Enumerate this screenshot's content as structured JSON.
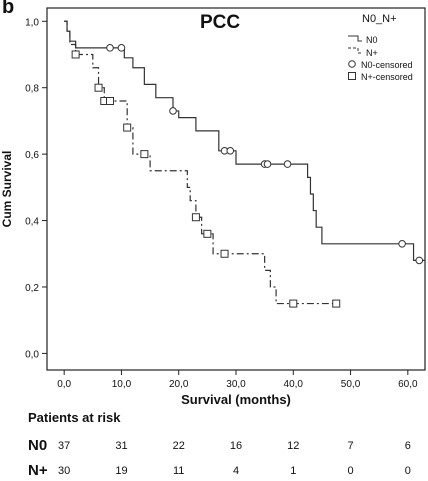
{
  "panel_label": "b",
  "chart_data": {
    "type": "line",
    "title": "PCC",
    "xlabel": "Survival (months)",
    "ylabel": "Cum Survival",
    "xlim": [
      -3,
      63
    ],
    "ylim": [
      -0.05,
      1.04
    ],
    "x_ticks": [
      0,
      10,
      20,
      30,
      40,
      50,
      60
    ],
    "x_tick_labels": [
      "0,0",
      "10,0",
      "20,0",
      "30,0",
      "40,0",
      "50,0",
      "60,0"
    ],
    "y_ticks": [
      0.0,
      0.2,
      0.4,
      0.6,
      0.8,
      1.0
    ],
    "y_tick_labels": [
      "0,0",
      "0,2",
      "0,4",
      "0,6",
      "0,8",
      "1,0"
    ],
    "legend_title": "N0_N+",
    "legend_position": "top-right",
    "grid": false,
    "series": [
      {
        "name": "N0",
        "line_style": "solid",
        "censor_marker": "circle",
        "censored_label": "N0-censored",
        "steps": [
          [
            0,
            1.0
          ],
          [
            0.5,
            0.97
          ],
          [
            1.0,
            0.94
          ],
          [
            2.0,
            0.92
          ],
          [
            10.5,
            0.89
          ],
          [
            12.0,
            0.86
          ],
          [
            14.0,
            0.81
          ],
          [
            16.0,
            0.77
          ],
          [
            19.0,
            0.73
          ],
          [
            20.0,
            0.71
          ],
          [
            23.0,
            0.67
          ],
          [
            27.0,
            0.61
          ],
          [
            30.0,
            0.57
          ],
          [
            42.5,
            0.53
          ],
          [
            43.0,
            0.48
          ],
          [
            43.5,
            0.43
          ],
          [
            44.0,
            0.38
          ],
          [
            45.0,
            0.33
          ],
          [
            61.0,
            0.28
          ]
        ],
        "end_x": 63,
        "censored": [
          [
            8.0,
            0.92
          ],
          [
            10.0,
            0.92
          ],
          [
            19.0,
            0.73
          ],
          [
            28.0,
            0.61
          ],
          [
            29.0,
            0.61
          ],
          [
            35.0,
            0.57
          ],
          [
            35.5,
            0.57
          ],
          [
            39.0,
            0.57
          ],
          [
            59.0,
            0.33
          ],
          [
            62.0,
            0.28
          ]
        ]
      },
      {
        "name": "N+",
        "line_style": "dashdot",
        "censor_marker": "square",
        "censored_label": "N+-censored",
        "steps": [
          [
            0,
            1.0
          ],
          [
            0.5,
            0.97
          ],
          [
            1.0,
            0.93
          ],
          [
            2.0,
            0.9
          ],
          [
            5.0,
            0.86
          ],
          [
            6.0,
            0.8
          ],
          [
            7.0,
            0.76
          ],
          [
            11.0,
            0.68
          ],
          [
            12.0,
            0.6
          ],
          [
            15.0,
            0.55
          ],
          [
            21.5,
            0.5
          ],
          [
            22.0,
            0.46
          ],
          [
            23.0,
            0.41
          ],
          [
            24.0,
            0.36
          ],
          [
            26.0,
            0.3
          ],
          [
            35.0,
            0.25
          ],
          [
            36.0,
            0.2
          ],
          [
            37.0,
            0.15
          ]
        ],
        "end_x": 47.5,
        "censored": [
          [
            2.0,
            0.9
          ],
          [
            6.0,
            0.8
          ],
          [
            7.0,
            0.76
          ],
          [
            8.0,
            0.76
          ],
          [
            11.0,
            0.68
          ],
          [
            14.0,
            0.6
          ],
          [
            23.0,
            0.41
          ],
          [
            25.0,
            0.36
          ],
          [
            28.0,
            0.3
          ],
          [
            40.0,
            0.15
          ],
          [
            47.5,
            0.15
          ]
        ]
      }
    ]
  },
  "risk_table": {
    "header": "Patients at risk",
    "rows": [
      {
        "label": "N0",
        "values": [
          "37",
          "31",
          "22",
          "16",
          "12",
          "7",
          "6"
        ]
      },
      {
        "label": "N+",
        "values": [
          "30",
          "19",
          "11",
          "4",
          "1",
          "0",
          "0"
        ]
      }
    ]
  }
}
